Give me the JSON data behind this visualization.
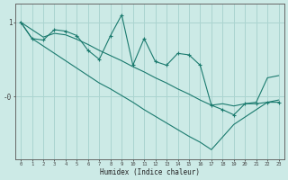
{
  "xlabel": "Humidex (Indice chaleur)",
  "bg_color": "#cceae6",
  "line_color": "#1a7a6e",
  "grid_color": "#aad4d0",
  "x_data": [
    0,
    1,
    2,
    3,
    4,
    5,
    6,
    7,
    8,
    9,
    10,
    11,
    12,
    13,
    14,
    15,
    16,
    17,
    18,
    19,
    20,
    21,
    22,
    23
  ],
  "y_main": [
    1.0,
    0.78,
    0.76,
    0.9,
    0.88,
    0.82,
    0.62,
    0.5,
    0.82,
    1.1,
    0.42,
    0.78,
    0.47,
    0.42,
    0.58,
    0.56,
    0.42,
    -0.12,
    -0.18,
    -0.25,
    -0.1,
    -0.1,
    -0.08,
    -0.08
  ],
  "y_upper": [
    1.0,
    0.9,
    0.8,
    0.85,
    0.83,
    0.77,
    0.7,
    0.62,
    0.55,
    0.48,
    0.4,
    0.33,
    0.25,
    0.18,
    0.1,
    0.03,
    -0.05,
    -0.12,
    -0.1,
    -0.13,
    -0.1,
    -0.08,
    0.25,
    0.28
  ],
  "y_lower": [
    1.0,
    0.78,
    0.68,
    0.58,
    0.48,
    0.38,
    0.28,
    0.18,
    0.1,
    0.01,
    -0.08,
    -0.18,
    -0.27,
    -0.36,
    -0.45,
    -0.54,
    -0.62,
    -0.72,
    -0.55,
    -0.38,
    -0.28,
    -0.18,
    -0.08,
    -0.05
  ],
  "ylim": [
    -0.85,
    1.25
  ],
  "xlim": [
    -0.5,
    23.5
  ],
  "yticks": [
    1,
    0
  ],
  "ytick_labels": [
    "1",
    "-0"
  ]
}
